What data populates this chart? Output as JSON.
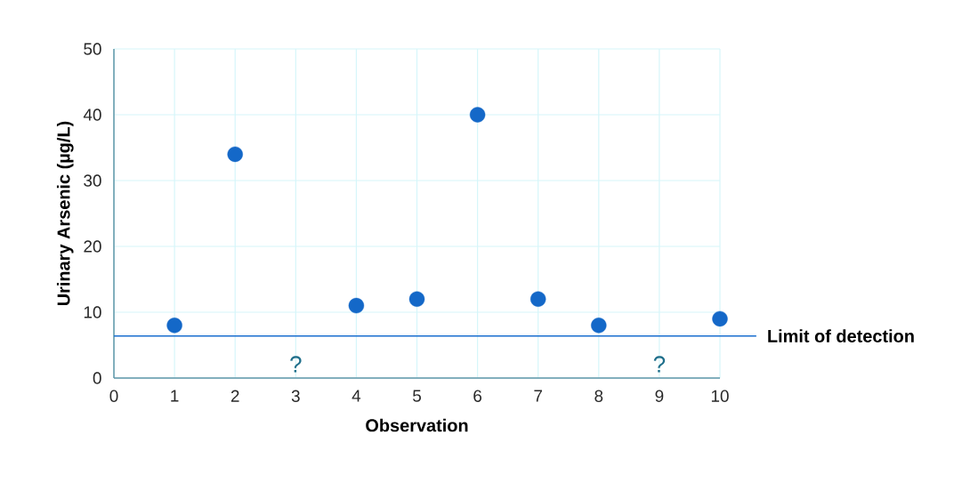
{
  "chart_data": {
    "type": "scatter",
    "xlabel": "Observation",
    "ylabel": "Urinary Arsenic (µg/L)",
    "x": [
      1,
      2,
      3,
      4,
      5,
      6,
      7,
      8,
      9,
      10
    ],
    "values": [
      8,
      34,
      null,
      11,
      12,
      40,
      12,
      8,
      null,
      9
    ],
    "color": "#1468c8",
    "marker": "circle",
    "xlim": [
      0,
      10
    ],
    "xticks": [
      0,
      1,
      2,
      3,
      4,
      5,
      6,
      7,
      8,
      9,
      10
    ],
    "ylim": [
      0,
      50
    ],
    "yticks": [
      0,
      10,
      20,
      30,
      40,
      50
    ],
    "grid": true,
    "ref_lines": [
      {
        "axis": "y",
        "value": 6.4,
        "label": "Limit of detection",
        "color": "#1a6fd0"
      }
    ],
    "annotations": [
      "?",
      "?"
    ]
  }
}
